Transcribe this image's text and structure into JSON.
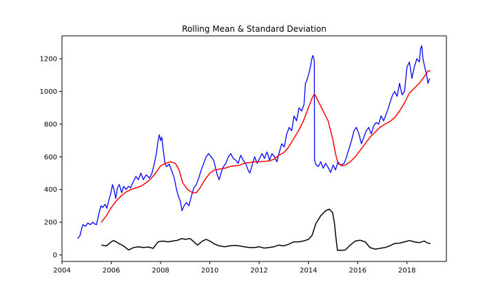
{
  "chart_data": {
    "type": "line",
    "title": "Rolling Mean & Standard Deviation",
    "xlabel": "",
    "ylabel": "",
    "xlim": [
      2004.0,
      2019.6
    ],
    "ylim": [
      -40,
      1340
    ],
    "x_ticks": [
      2004,
      2006,
      2008,
      2010,
      2012,
      2014,
      2016,
      2018
    ],
    "y_ticks": [
      0,
      200,
      400,
      600,
      800,
      1000,
      1200
    ],
    "grid": false,
    "legend": "none",
    "series": [
      {
        "key": "original",
        "color": "#0000ff",
        "points": [
          [
            2004.63,
            100
          ],
          [
            2004.72,
            115
          ],
          [
            2004.8,
            160
          ],
          [
            2004.85,
            185
          ],
          [
            2004.95,
            175
          ],
          [
            2005.05,
            195
          ],
          [
            2005.15,
            185
          ],
          [
            2005.25,
            200
          ],
          [
            2005.32,
            190
          ],
          [
            2005.4,
            185
          ],
          [
            2005.5,
            255
          ],
          [
            2005.58,
            300
          ],
          [
            2005.65,
            290
          ],
          [
            2005.75,
            310
          ],
          [
            2005.82,
            285
          ],
          [
            2005.9,
            335
          ],
          [
            2005.97,
            370
          ],
          [
            2006.05,
            430
          ],
          [
            2006.12,
            395
          ],
          [
            2006.18,
            345
          ],
          [
            2006.25,
            410
          ],
          [
            2006.33,
            430
          ],
          [
            2006.42,
            380
          ],
          [
            2006.5,
            420
          ],
          [
            2006.6,
            400
          ],
          [
            2006.7,
            420
          ],
          [
            2006.78,
            410
          ],
          [
            2006.9,
            450
          ],
          [
            2007.0,
            480
          ],
          [
            2007.1,
            460
          ],
          [
            2007.2,
            500
          ],
          [
            2007.3,
            460
          ],
          [
            2007.42,
            490
          ],
          [
            2007.55,
            470
          ],
          [
            2007.65,
            500
          ],
          [
            2007.75,
            560
          ],
          [
            2007.83,
            620
          ],
          [
            2007.9,
            700
          ],
          [
            2007.95,
            735
          ],
          [
            2008.0,
            700
          ],
          [
            2008.05,
            720
          ],
          [
            2008.1,
            650
          ],
          [
            2008.18,
            560
          ],
          [
            2008.25,
            540
          ],
          [
            2008.35,
            555
          ],
          [
            2008.45,
            515
          ],
          [
            2008.55,
            475
          ],
          [
            2008.65,
            400
          ],
          [
            2008.72,
            360
          ],
          [
            2008.8,
            330
          ],
          [
            2008.87,
            270
          ],
          [
            2008.95,
            300
          ],
          [
            2009.05,
            320
          ],
          [
            2009.15,
            300
          ],
          [
            2009.25,
            360
          ],
          [
            2009.35,
            410
          ],
          [
            2009.45,
            430
          ],
          [
            2009.55,
            470
          ],
          [
            2009.65,
            520
          ],
          [
            2009.75,
            560
          ],
          [
            2009.85,
            600
          ],
          [
            2009.95,
            620
          ],
          [
            2010.05,
            600
          ],
          [
            2010.15,
            580
          ],
          [
            2010.22,
            540
          ],
          [
            2010.3,
            490
          ],
          [
            2010.38,
            460
          ],
          [
            2010.45,
            500
          ],
          [
            2010.55,
            540
          ],
          [
            2010.65,
            560
          ],
          [
            2010.75,
            600
          ],
          [
            2010.85,
            620
          ],
          [
            2010.95,
            590
          ],
          [
            2011.05,
            580
          ],
          [
            2011.15,
            560
          ],
          [
            2011.25,
            610
          ],
          [
            2011.35,
            580
          ],
          [
            2011.45,
            560
          ],
          [
            2011.55,
            520
          ],
          [
            2011.62,
            500
          ],
          [
            2011.72,
            550
          ],
          [
            2011.82,
            600
          ],
          [
            2011.92,
            560
          ],
          [
            2012.02,
            590
          ],
          [
            2012.12,
            620
          ],
          [
            2012.22,
            590
          ],
          [
            2012.32,
            630
          ],
          [
            2012.42,
            580
          ],
          [
            2012.52,
            620
          ],
          [
            2012.62,
            600
          ],
          [
            2012.72,
            570
          ],
          [
            2012.82,
            630
          ],
          [
            2012.92,
            680
          ],
          [
            2013.02,
            660
          ],
          [
            2013.12,
            740
          ],
          [
            2013.22,
            780
          ],
          [
            2013.32,
            760
          ],
          [
            2013.42,
            850
          ],
          [
            2013.52,
            820
          ],
          [
            2013.62,
            900
          ],
          [
            2013.72,
            880
          ],
          [
            2013.82,
            920
          ],
          [
            2013.88,
            1050
          ],
          [
            2013.92,
            1060
          ],
          [
            2014.0,
            1100
          ],
          [
            2014.08,
            1150
          ],
          [
            2014.14,
            1200
          ],
          [
            2014.18,
            1220
          ],
          [
            2014.22,
            1200
          ],
          [
            2014.24,
            1180
          ],
          [
            2014.25,
            580
          ],
          [
            2014.3,
            555
          ],
          [
            2014.4,
            540
          ],
          [
            2014.5,
            570
          ],
          [
            2014.6,
            530
          ],
          [
            2014.7,
            560
          ],
          [
            2014.8,
            535
          ],
          [
            2014.9,
            505
          ],
          [
            2015.0,
            550
          ],
          [
            2015.1,
            520
          ],
          [
            2015.2,
            570
          ],
          [
            2015.3,
            550
          ],
          [
            2015.38,
            555
          ],
          [
            2015.45,
            560
          ],
          [
            2015.55,
            600
          ],
          [
            2015.65,
            650
          ],
          [
            2015.75,
            700
          ],
          [
            2015.85,
            760
          ],
          [
            2015.95,
            780
          ],
          [
            2016.05,
            740
          ],
          [
            2016.15,
            680
          ],
          [
            2016.25,
            720
          ],
          [
            2016.35,
            760
          ],
          [
            2016.45,
            780
          ],
          [
            2016.55,
            740
          ],
          [
            2016.65,
            790
          ],
          [
            2016.75,
            810
          ],
          [
            2016.85,
            800
          ],
          [
            2016.95,
            850
          ],
          [
            2017.05,
            820
          ],
          [
            2017.15,
            860
          ],
          [
            2017.25,
            900
          ],
          [
            2017.35,
            950
          ],
          [
            2017.42,
            980
          ],
          [
            2017.5,
            1000
          ],
          [
            2017.6,
            970
          ],
          [
            2017.7,
            1050
          ],
          [
            2017.8,
            980
          ],
          [
            2017.9,
            1000
          ],
          [
            2018.0,
            1150
          ],
          [
            2018.1,
            1180
          ],
          [
            2018.2,
            1080
          ],
          [
            2018.3,
            1150
          ],
          [
            2018.4,
            1200
          ],
          [
            2018.5,
            1180
          ],
          [
            2018.55,
            1260
          ],
          [
            2018.6,
            1280
          ],
          [
            2018.65,
            1200
          ],
          [
            2018.72,
            1150
          ],
          [
            2018.8,
            1100
          ],
          [
            2018.85,
            1050
          ],
          [
            2018.92,
            1080
          ]
        ]
      },
      {
        "key": "rolling_mean",
        "color": "#ff0000",
        "points": [
          [
            2005.6,
            200
          ],
          [
            2005.8,
            240
          ],
          [
            2006.0,
            290
          ],
          [
            2006.2,
            330
          ],
          [
            2006.4,
            360
          ],
          [
            2006.6,
            385
          ],
          [
            2006.8,
            400
          ],
          [
            2007.0,
            410
          ],
          [
            2007.2,
            420
          ],
          [
            2007.4,
            440
          ],
          [
            2007.6,
            465
          ],
          [
            2007.8,
            500
          ],
          [
            2008.0,
            545
          ],
          [
            2008.2,
            560
          ],
          [
            2008.4,
            570
          ],
          [
            2008.6,
            560
          ],
          [
            2008.75,
            520
          ],
          [
            2008.9,
            440
          ],
          [
            2009.1,
            400
          ],
          [
            2009.3,
            380
          ],
          [
            2009.45,
            380
          ],
          [
            2009.6,
            410
          ],
          [
            2009.8,
            460
          ],
          [
            2010.0,
            500
          ],
          [
            2010.2,
            520
          ],
          [
            2010.4,
            525
          ],
          [
            2010.6,
            530
          ],
          [
            2010.8,
            540
          ],
          [
            2011.0,
            545
          ],
          [
            2011.2,
            548
          ],
          [
            2011.4,
            560
          ],
          [
            2011.6,
            565
          ],
          [
            2011.8,
            570
          ],
          [
            2012.0,
            570
          ],
          [
            2012.2,
            572
          ],
          [
            2012.4,
            575
          ],
          [
            2012.6,
            585
          ],
          [
            2012.8,
            610
          ],
          [
            2013.0,
            625
          ],
          [
            2013.2,
            660
          ],
          [
            2013.4,
            710
          ],
          [
            2013.6,
            760
          ],
          [
            2013.8,
            820
          ],
          [
            2014.0,
            900
          ],
          [
            2014.15,
            960
          ],
          [
            2014.25,
            985
          ],
          [
            2014.4,
            940
          ],
          [
            2014.6,
            880
          ],
          [
            2014.8,
            820
          ],
          [
            2015.0,
            700
          ],
          [
            2015.1,
            620
          ],
          [
            2015.2,
            560
          ],
          [
            2015.35,
            545
          ],
          [
            2015.5,
            550
          ],
          [
            2015.7,
            570
          ],
          [
            2015.9,
            600
          ],
          [
            2016.1,
            640
          ],
          [
            2016.3,
            680
          ],
          [
            2016.5,
            720
          ],
          [
            2016.7,
            750
          ],
          [
            2016.9,
            780
          ],
          [
            2017.1,
            800
          ],
          [
            2017.3,
            815
          ],
          [
            2017.5,
            840
          ],
          [
            2017.7,
            880
          ],
          [
            2017.9,
            930
          ],
          [
            2018.1,
            990
          ],
          [
            2018.3,
            1020
          ],
          [
            2018.5,
            1050
          ],
          [
            2018.7,
            1090
          ],
          [
            2018.85,
            1125
          ],
          [
            2018.95,
            1125
          ]
        ]
      },
      {
        "key": "rolling_std",
        "color": "#000000",
        "points": [
          [
            2005.6,
            60
          ],
          [
            2005.8,
            55
          ],
          [
            2006.0,
            80
          ],
          [
            2006.1,
            88
          ],
          [
            2006.3,
            70
          ],
          [
            2006.5,
            55
          ],
          [
            2006.7,
            30
          ],
          [
            2006.9,
            45
          ],
          [
            2007.1,
            50
          ],
          [
            2007.3,
            45
          ],
          [
            2007.5,
            48
          ],
          [
            2007.7,
            40
          ],
          [
            2007.9,
            80
          ],
          [
            2008.1,
            85
          ],
          [
            2008.3,
            80
          ],
          [
            2008.5,
            85
          ],
          [
            2008.7,
            90
          ],
          [
            2008.85,
            100
          ],
          [
            2009.0,
            95
          ],
          [
            2009.2,
            100
          ],
          [
            2009.35,
            80
          ],
          [
            2009.5,
            60
          ],
          [
            2009.7,
            85
          ],
          [
            2009.85,
            95
          ],
          [
            2010.0,
            85
          ],
          [
            2010.2,
            65
          ],
          [
            2010.4,
            55
          ],
          [
            2010.6,
            50
          ],
          [
            2010.8,
            55
          ],
          [
            2011.0,
            58
          ],
          [
            2011.2,
            55
          ],
          [
            2011.4,
            50
          ],
          [
            2011.6,
            45
          ],
          [
            2011.8,
            45
          ],
          [
            2012.0,
            50
          ],
          [
            2012.2,
            42
          ],
          [
            2012.4,
            45
          ],
          [
            2012.6,
            50
          ],
          [
            2012.8,
            60
          ],
          [
            2013.0,
            55
          ],
          [
            2013.2,
            65
          ],
          [
            2013.4,
            80
          ],
          [
            2013.6,
            80
          ],
          [
            2013.8,
            85
          ],
          [
            2014.0,
            95
          ],
          [
            2014.15,
            120
          ],
          [
            2014.3,
            190
          ],
          [
            2014.5,
            240
          ],
          [
            2014.7,
            270
          ],
          [
            2014.85,
            280
          ],
          [
            2014.98,
            260
          ],
          [
            2015.05,
            200
          ],
          [
            2015.12,
            100
          ],
          [
            2015.18,
            28
          ],
          [
            2015.3,
            28
          ],
          [
            2015.5,
            30
          ],
          [
            2015.7,
            60
          ],
          [
            2015.9,
            85
          ],
          [
            2016.1,
            90
          ],
          [
            2016.3,
            80
          ],
          [
            2016.5,
            45
          ],
          [
            2016.7,
            35
          ],
          [
            2016.9,
            40
          ],
          [
            2017.1,
            45
          ],
          [
            2017.3,
            55
          ],
          [
            2017.5,
            70
          ],
          [
            2017.7,
            72
          ],
          [
            2017.9,
            80
          ],
          [
            2018.1,
            88
          ],
          [
            2018.3,
            80
          ],
          [
            2018.5,
            75
          ],
          [
            2018.7,
            85
          ],
          [
            2018.85,
            72
          ],
          [
            2018.95,
            70
          ]
        ]
      }
    ]
  }
}
